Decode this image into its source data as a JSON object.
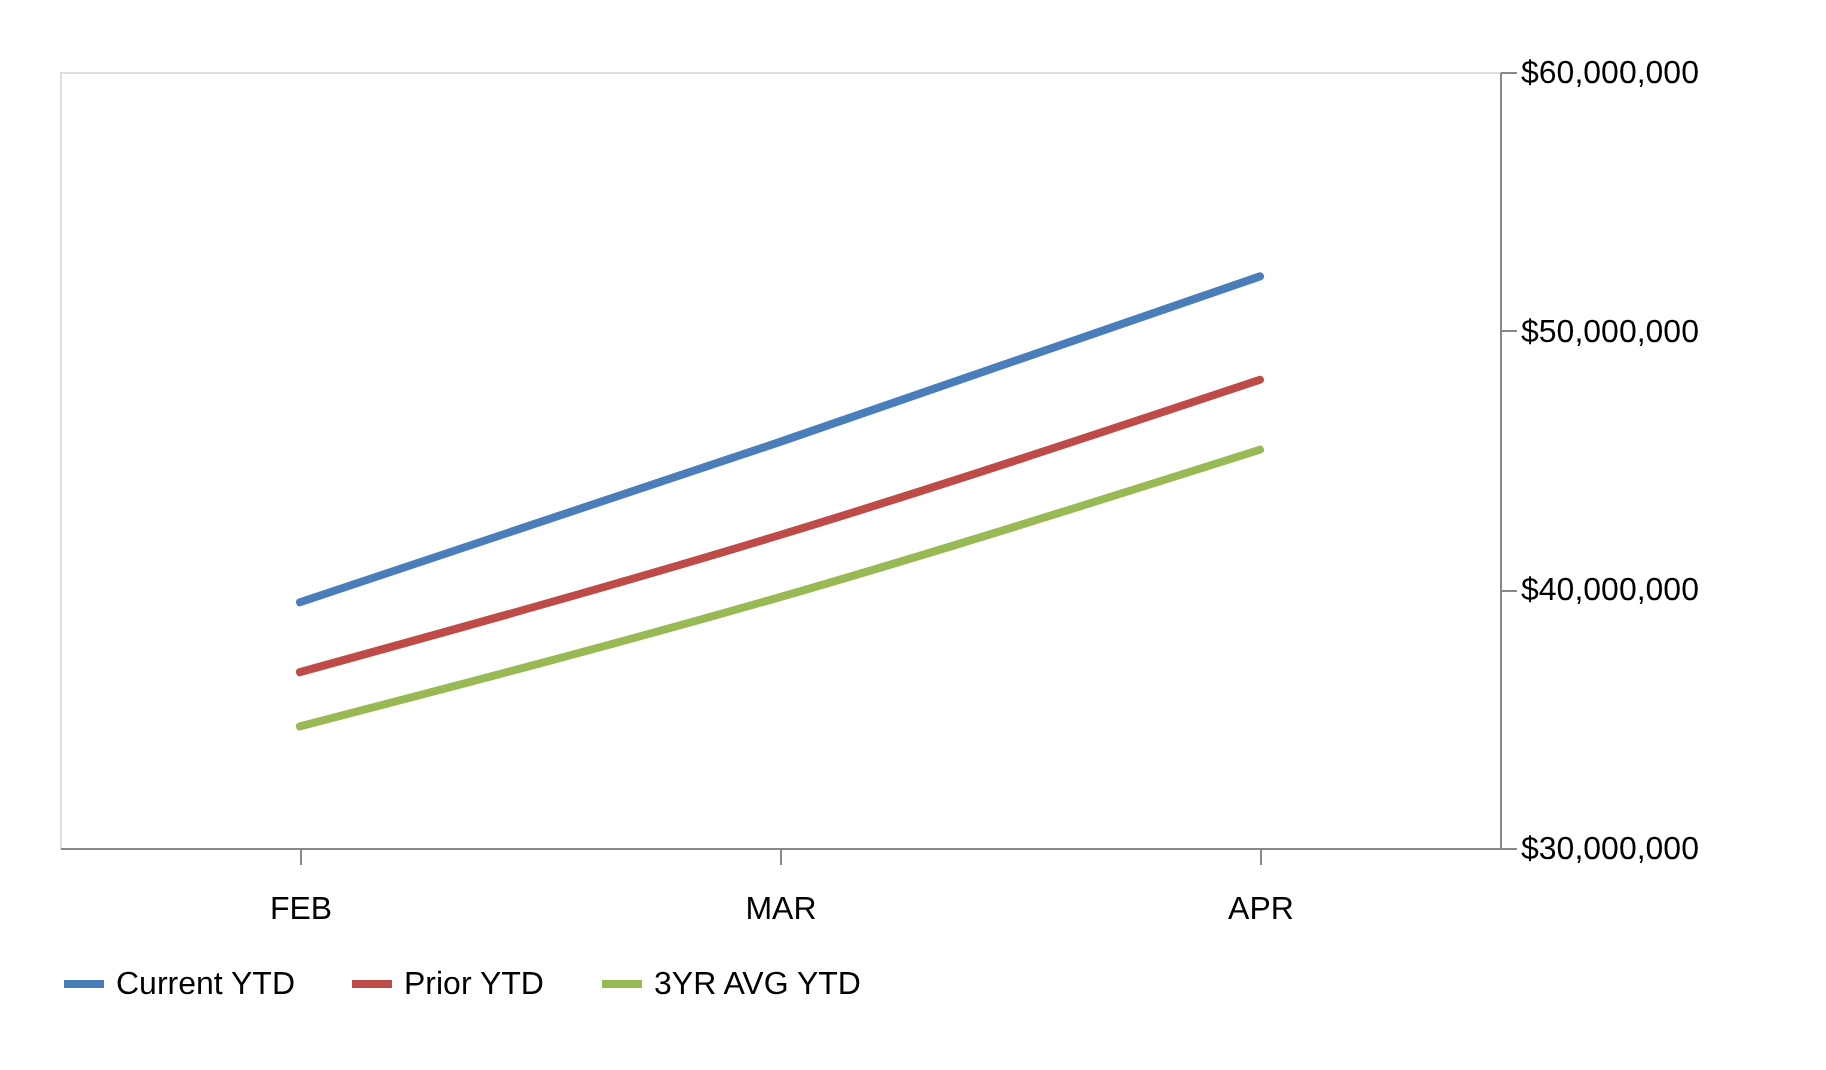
{
  "chart_data": {
    "type": "line",
    "categories": [
      "FEB",
      "MAR",
      "APR"
    ],
    "series": [
      {
        "name": "Current YTD",
        "color": "#4a7ebb",
        "values": [
          39500000,
          45700000,
          52100000
        ]
      },
      {
        "name": "Prior YTD",
        "color": "#be4b48",
        "values": [
          36800000,
          42100000,
          48100000
        ]
      },
      {
        "name": "3YR AVG YTD",
        "color": "#98b954",
        "values": [
          34700000,
          39700000,
          45400000
        ]
      }
    ],
    "ylim": [
      30000000,
      60000000
    ],
    "yticks": [
      {
        "value": 30000000,
        "label": "$30,000,000"
      },
      {
        "value": 40000000,
        "label": "$40,000,000"
      },
      {
        "value": 50000000,
        "label": "$50,000,000"
      },
      {
        "value": 60000000,
        "label": "$60,000,000"
      }
    ],
    "grid": false,
    "legend": "bottom",
    "marker": "none",
    "line_style": "solid"
  }
}
